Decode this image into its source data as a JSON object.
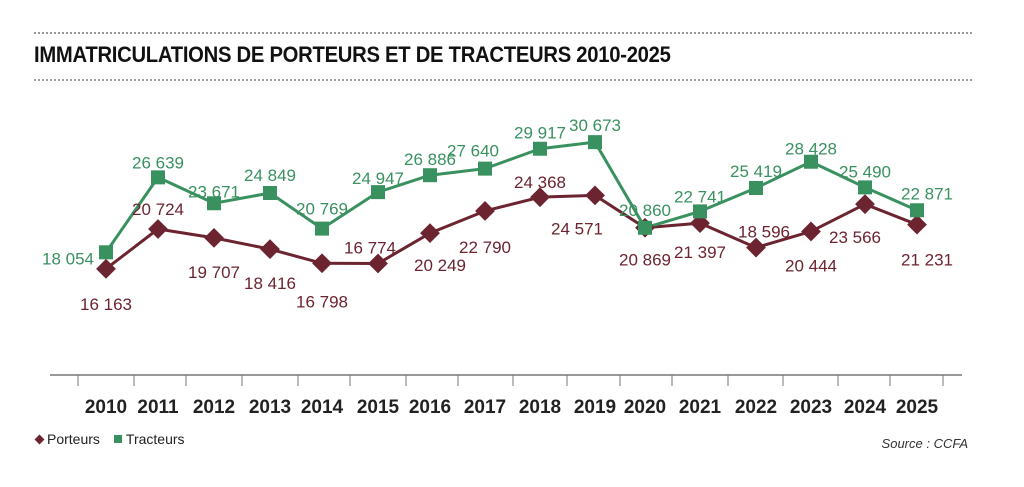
{
  "chart_data": {
    "type": "line",
    "title": "IMMATRICULATIONS DE PORTEURS ET DE TRACTEURS 2010-2025",
    "x": [
      "2010",
      "2011",
      "2012",
      "2013",
      "2014",
      "2015",
      "2016",
      "2017",
      "2018",
      "2019",
      "2020",
      "2021",
      "2022",
      "2023",
      "2024",
      "2025"
    ],
    "series": [
      {
        "name": "Porteurs",
        "color": "#6b2430",
        "marker": "diamond",
        "values": [
          16163,
          20724,
          19707,
          18416,
          16798,
          16774,
          20249,
          22790,
          24368,
          24571,
          20869,
          21397,
          18596,
          20444,
          23566,
          21231
        ],
        "labels": [
          "16 163",
          "20 724",
          "19 707",
          "18 416",
          "16 798",
          "16 774",
          "20 249",
          "22 790",
          "24 368",
          "24 571",
          "20 869",
          "21 397",
          "18 596",
          "20 444",
          "23 566",
          "21 231"
        ]
      },
      {
        "name": "Tracteurs",
        "color": "#3a9160",
        "marker": "square",
        "values": [
          18054,
          26639,
          23671,
          24849,
          20769,
          24947,
          26886,
          27640,
          29917,
          30673,
          20860,
          22741,
          25419,
          28428,
          25490,
          22871
        ],
        "labels": [
          "18 054",
          "26 639",
          "23 671",
          "24 849",
          "20 769",
          "24 947",
          "26 886",
          "27 640",
          "29 917",
          "30 673",
          "20 860",
          "22 741",
          "25 419",
          "28 428",
          "25 490",
          "22 871"
        ]
      }
    ],
    "ylim": [
      4000,
      35500
    ],
    "grid": false,
    "legend": "bottom-left",
    "source": "Source : CCFA"
  }
}
